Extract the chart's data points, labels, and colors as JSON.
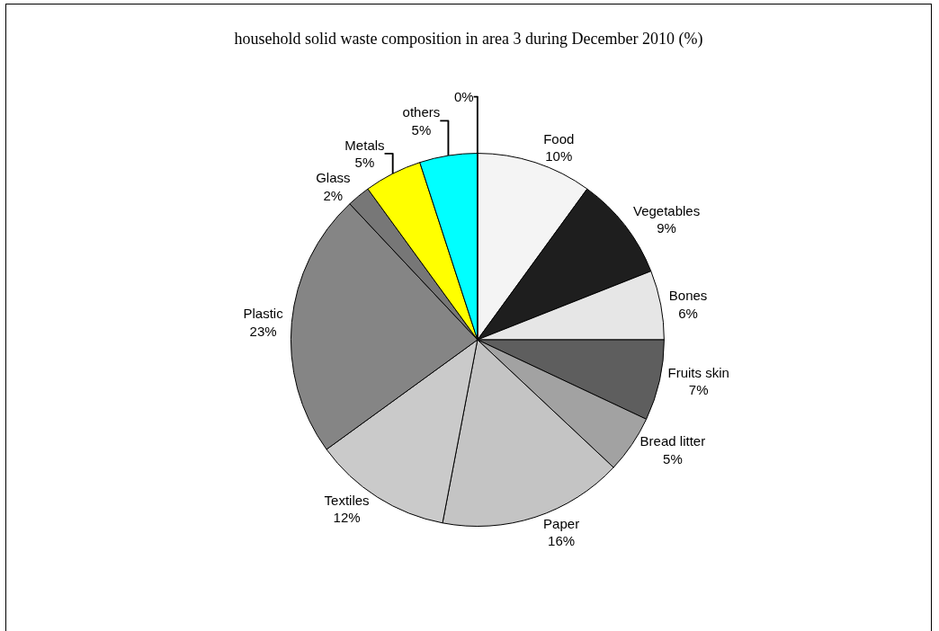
{
  "chart_data": {
    "type": "pie",
    "title": "household solid waste composition in area 3 during December 2010 (%)",
    "categories": [
      "Food",
      "Vegetables",
      "Bones",
      "Fruits skin",
      "Bread litter",
      "Paper",
      "Textiles",
      "Plastic",
      "Glass",
      "Metals",
      "others",
      null
    ],
    "values": [
      10,
      9,
      6,
      7,
      5,
      16,
      12,
      23,
      2,
      5,
      5,
      0
    ],
    "value_labels": [
      "10%",
      "9%",
      "6%",
      "7%",
      "5%",
      "16%",
      "12%",
      "23%",
      "2%",
      "5%",
      "5%",
      "0%"
    ],
    "colors": [
      "#f4f4f4",
      "#1e1e1e",
      "#e6e6e6",
      "#5e5e5e",
      "#a2a2a2",
      "#c4c4c4",
      "#cacaca",
      "#858585",
      "#777777",
      "#ffff00",
      "#00ffff",
      "#ffffff"
    ],
    "legend": false
  }
}
